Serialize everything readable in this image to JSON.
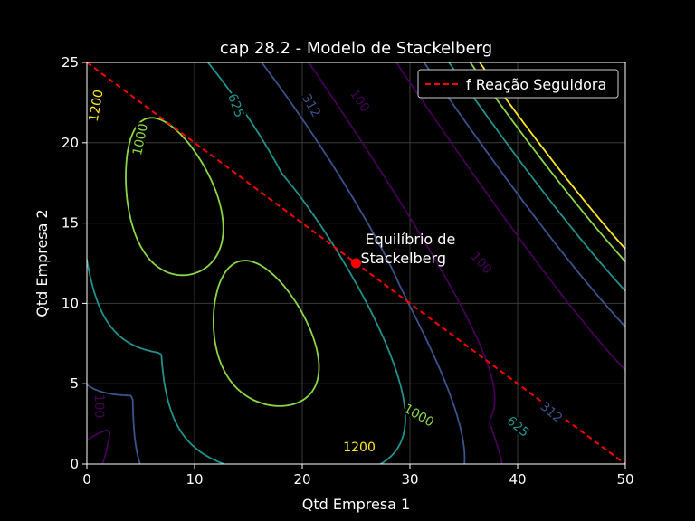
{
  "chart_data": {
    "type": "line",
    "title": "cap 28.2 - Modelo de Stackelberg",
    "xlabel": "Qtd Empresa 1",
    "ylabel": "Qtd Empresa 2",
    "xlim": [
      0,
      50
    ],
    "ylim": [
      0,
      25
    ],
    "xticks": [
      "0",
      "10",
      "20",
      "30",
      "40",
      "50"
    ],
    "yticks": [
      "0",
      "5",
      "10",
      "15",
      "20",
      "25"
    ],
    "grid": true,
    "legend_position": "top-right",
    "series": [
      {
        "name": "f Reação Seguidora",
        "style": "dashed",
        "color": "#ff0000",
        "x": [
          0,
          50
        ],
        "y": [
          25,
          0
        ]
      }
    ],
    "equilibrium_point": {
      "x": 25,
      "y": 12.5,
      "color": "#ff0000",
      "label": "Equilíbrio de\nStackelberg"
    },
    "contour_levels": [
      {
        "level": 100,
        "label": "100",
        "color": "#440154"
      },
      {
        "level": 312,
        "label": "312",
        "color": "#3b528b"
      },
      {
        "level": 625,
        "label": "625",
        "color": "#21918c"
      },
      {
        "level": 1000,
        "label": "1000",
        "color": "#8bd646"
      },
      {
        "level": 1200,
        "label": "1200",
        "color": "#fde725"
      }
    ],
    "contour_labels": [
      {
        "text": "1200",
        "x": 0.9,
        "y": 22.3,
        "rotation": -80,
        "color": "#fde725"
      },
      {
        "text": "1000",
        "x": 5.0,
        "y": 20.2,
        "rotation": -78,
        "color": "#8bd646"
      },
      {
        "text": "625",
        "x": 13.8,
        "y": 22.3,
        "rotation": 70,
        "color": "#21918c"
      },
      {
        "text": "312",
        "x": 20.8,
        "y": 22.3,
        "rotation": 60,
        "color": "#3b528b"
      },
      {
        "text": "100",
        "x": 25.3,
        "y": 22.6,
        "rotation": 55,
        "color": "#440154"
      },
      {
        "text": "100",
        "x": 36.6,
        "y": 12.5,
        "rotation": 48,
        "color": "#440154"
      },
      {
        "text": "100",
        "x": 1.1,
        "y": 3.6,
        "rotation": 90,
        "color": "#440154"
      },
      {
        "text": "1000",
        "x": 30.8,
        "y": 3.0,
        "rotation": 30,
        "color": "#8bd646"
      },
      {
        "text": "1200",
        "x": 25.3,
        "y": 1.0,
        "rotation": 0,
        "color": "#fde725"
      },
      {
        "text": "625",
        "x": 40.0,
        "y": 2.3,
        "rotation": 40,
        "color": "#21918c"
      },
      {
        "text": "312",
        "x": 43.1,
        "y": 3.2,
        "rotation": 40,
        "color": "#3b528b"
      }
    ]
  }
}
